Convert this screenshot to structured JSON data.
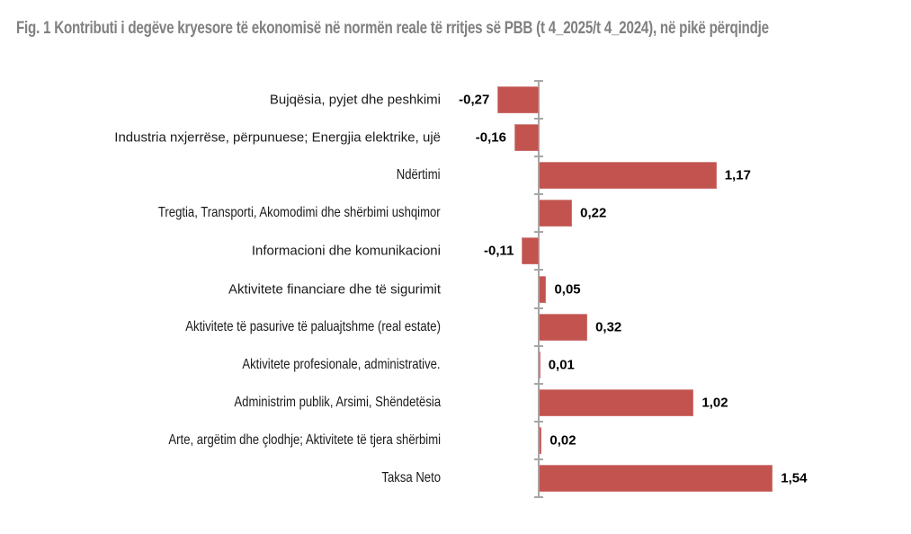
{
  "title": "Fig. 1 Kontributi i degëve kryesore të ekonomisë në normën reale të rritjes së PBB (t 4_2025/t 4_2024), në pikë përqindje",
  "colors": {
    "bar": "#c2534f",
    "axis": "#a6a6a6",
    "title_text": "#808080",
    "label_text": "#1a1a1a",
    "value_text": "#000000",
    "background": "#ffffff"
  },
  "chart_data": {
    "type": "bar",
    "orientation": "horizontal",
    "title": "Fig. 1 Kontributi i degëve kryesore të ekonomisë në normën reale të rritjes së PBB (t 4_2025/t 4_2024), në pikë përqindje",
    "xlabel": "",
    "ylabel": "",
    "categories": [
      "Bujqësia, pyjet dhe peshkimi",
      "Industria nxjerrëse, përpunuese; Energjia elektrike, ujë",
      "Ndërtimi",
      "Tregtia, Transporti, Akomodimi dhe shërbimi ushqimor",
      "Informacioni dhe komunikacioni",
      "Aktivitete financiare dhe të sigurimit",
      "Aktivitete të pasurive të paluajtshme (real estate)",
      "Aktivitete profesionale, administrative.",
      "Administrim publik, Arsimi, Shëndetësia",
      "Arte, argëtim dhe çlodhje; Aktivitete të tjera shërbimi",
      "Taksa Neto"
    ],
    "values": [
      -0.27,
      -0.16,
      1.17,
      0.22,
      -0.11,
      0.05,
      0.32,
      0.01,
      1.02,
      0.02,
      1.54
    ],
    "value_labels": [
      "-0,27",
      "-0,16",
      "1,17",
      "0,22",
      "-0,11",
      "0,05",
      "0,32",
      "0,01",
      "1,02",
      "0,02",
      "1,54"
    ],
    "xlim": [
      -0.5,
      2.2
    ],
    "grid": false,
    "legend": false,
    "value_axis_labels_visible": false,
    "decimal_separator": ","
  }
}
